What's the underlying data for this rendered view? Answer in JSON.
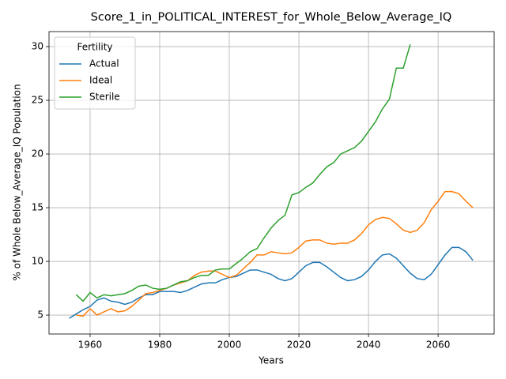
{
  "chart_data": {
    "type": "line",
    "title": "Score_1_in_POLITICAL_INTEREST_for_Whole_Below_Average_IQ",
    "x_label": "Years",
    "y_label": "% of Whole Below_Average_IQ Population",
    "legend_title": "Fertility",
    "legend_position": "upper left",
    "grid": true,
    "x": [
      1954,
      1956,
      1958,
      1960,
      1962,
      1964,
      1966,
      1968,
      1970,
      1972,
      1974,
      1976,
      1978,
      1980,
      1982,
      1984,
      1986,
      1988,
      1990,
      1992,
      1994,
      1996,
      1998,
      2000,
      2002,
      2004,
      2006,
      2008,
      2010,
      2012,
      2014,
      2016,
      2018,
      2020,
      2022,
      2024,
      2026,
      2028,
      2030,
      2032,
      2034,
      2036,
      2038,
      2040,
      2042,
      2044,
      2046,
      2048,
      2050,
      2052,
      2054,
      2056,
      2058,
      2060,
      2062,
      2064,
      2066,
      2068,
      2070
    ],
    "series": [
      {
        "name": "Actual",
        "color": "#1f77b4",
        "values": [
          4.7,
          5.1,
          5.5,
          5.8,
          6.4,
          6.6,
          6.3,
          6.2,
          6.0,
          6.2,
          6.6,
          6.9,
          6.9,
          7.2,
          7.2,
          7.2,
          7.1,
          7.3,
          7.6,
          7.9,
          8.0,
          8.0,
          8.3,
          8.5,
          8.6,
          8.9,
          9.2,
          9.2,
          9.0,
          8.8,
          8.4,
          8.2,
          8.4,
          9.0,
          9.6,
          9.9,
          9.9,
          9.5,
          9.0,
          8.5,
          8.2,
          8.3,
          8.6,
          9.2,
          10.0,
          10.6,
          10.7,
          10.3,
          9.6,
          8.9,
          8.4,
          8.3,
          8.8,
          9.7,
          10.6,
          11.3,
          11.3,
          10.9,
          10.1
        ]
      },
      {
        "name": "Ideal",
        "color": "#ff7f0e",
        "values": [
          null,
          5.0,
          4.9,
          5.6,
          5.0,
          5.3,
          5.6,
          5.3,
          5.4,
          5.8,
          6.4,
          7.0,
          7.1,
          7.3,
          7.5,
          7.8,
          8.0,
          8.2,
          8.7,
          9.0,
          9.1,
          9.1,
          8.8,
          8.5,
          8.7,
          9.3,
          9.9,
          10.6,
          10.6,
          10.9,
          10.8,
          10.7,
          10.8,
          11.3,
          11.9,
          12.0,
          12.0,
          11.7,
          11.6,
          11.7,
          11.7,
          12.0,
          12.6,
          13.4,
          13.9,
          14.1,
          14.0,
          13.5,
          12.9,
          12.7,
          12.9,
          13.6,
          14.8,
          15.6,
          16.5,
          16.5,
          16.3,
          15.6,
          15.0
        ]
      },
      {
        "name": "Sterile",
        "color": "#2ca02c",
        "values": [
          null,
          6.9,
          6.3,
          7.1,
          6.6,
          6.9,
          6.8,
          6.9,
          7.0,
          7.3,
          7.7,
          7.8,
          7.5,
          7.4,
          7.5,
          7.8,
          8.1,
          8.2,
          8.5,
          8.7,
          8.7,
          9.2,
          9.3,
          9.3,
          9.8,
          10.3,
          10.9,
          11.2,
          12.2,
          13.1,
          13.8,
          14.3,
          16.2,
          16.4,
          16.9,
          17.3,
          18.1,
          18.8,
          19.2,
          20.0,
          20.3,
          20.6,
          21.2,
          22.1,
          23.0,
          24.2,
          25.1,
          28.0,
          28.0,
          30.2,
          null,
          null,
          null,
          null,
          null,
          null,
          null,
          null,
          null
        ]
      }
    ],
    "xlim": [
      1948.2,
      2076.1
    ],
    "ylim": [
      3.24,
      31.4
    ],
    "xticks": [
      1960,
      1980,
      2000,
      2020,
      2040,
      2060
    ],
    "yticks": [
      5,
      10,
      15,
      20,
      25,
      30
    ]
  }
}
